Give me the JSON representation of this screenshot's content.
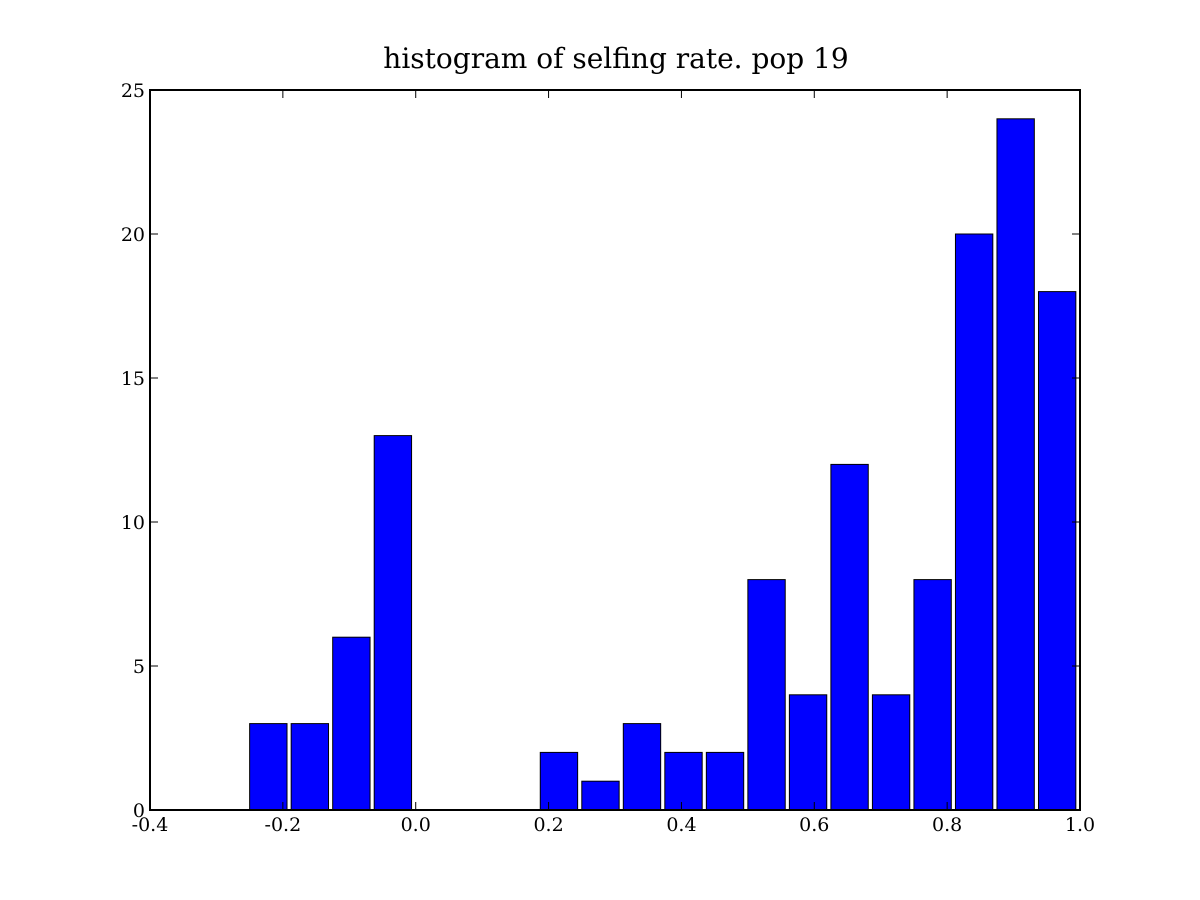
{
  "chart_data": {
    "type": "bar",
    "title": "histogram of selfing rate. pop 19",
    "xlabel": "",
    "ylabel": "",
    "xlim": [
      -0.4,
      1.0
    ],
    "ylim": [
      0,
      25
    ],
    "x_ticks": [
      -0.4,
      -0.2,
      0.0,
      0.2,
      0.4,
      0.6,
      0.8,
      1.0
    ],
    "x_tick_labels": [
      "-0.4",
      "-0.2",
      "0.0",
      "0.2",
      "0.4",
      "0.6",
      "0.8",
      "1.0"
    ],
    "y_ticks": [
      0,
      5,
      10,
      15,
      20,
      25
    ],
    "y_tick_labels": [
      "0",
      "5",
      "10",
      "15",
      "20",
      "25"
    ],
    "bin_width": 0.0625,
    "bar_fraction": 0.9,
    "bin_starts": [
      -0.25,
      -0.1875,
      -0.125,
      -0.0625,
      0.0,
      0.0625,
      0.125,
      0.1875,
      0.25,
      0.3125,
      0.375,
      0.4375,
      0.5,
      0.5625,
      0.625,
      0.6875,
      0.75,
      0.8125,
      0.875,
      0.9375
    ],
    "values": [
      3,
      3,
      6,
      13,
      0,
      0,
      0,
      2,
      1,
      3,
      2,
      2,
      8,
      4,
      12,
      4,
      8,
      20,
      24,
      18
    ],
    "bar_color": "#0000ff",
    "grid": false,
    "legend": "none"
  }
}
